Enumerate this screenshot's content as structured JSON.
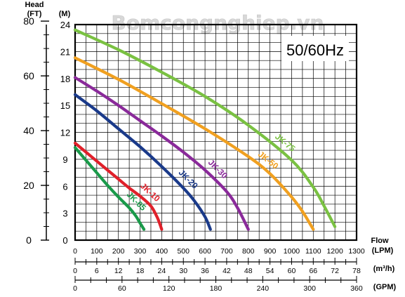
{
  "watermark": "Bomcongnghiep.vn",
  "frequency_label": "50/60Hz",
  "chart_data": {
    "type": "line",
    "title": "",
    "y_axis_title": "Head",
    "y_unit_ft": "(FT)",
    "y_unit_m": "(M)",
    "x_axis_title": "Flow",
    "x_unit_lpm": "(LPM)",
    "x_unit_m3h": "(m³/h)",
    "x_unit_gpm": "(GPM)",
    "ylim_m": [
      0,
      24
    ],
    "xlim_lpm": [
      0,
      1300
    ],
    "grid": true,
    "y_ticks_m": [
      0,
      3,
      6,
      9,
      12,
      15,
      18,
      21,
      24
    ],
    "y_ticks_ft": [
      0,
      20,
      40,
      60,
      80
    ],
    "x_ticks_lpm": [
      0,
      100,
      200,
      300,
      400,
      500,
      600,
      700,
      800,
      900,
      1000,
      1100,
      1200,
      1300
    ],
    "x_ticks_m3h": [
      0,
      6,
      12,
      18,
      24,
      30,
      36,
      42,
      48,
      54,
      60,
      66,
      72,
      78
    ],
    "x_ticks_gpm": [
      0,
      60,
      120,
      180,
      240,
      300,
      360
    ],
    "series": [
      {
        "name": "JK-05",
        "color": "#1a9a4a",
        "x": [
          0,
          50,
          100,
          150,
          200,
          250,
          280,
          300,
          318
        ],
        "y": [
          10.3,
          8.9,
          7.5,
          6.1,
          4.8,
          3.6,
          2.7,
          1.9,
          1.2
        ]
      },
      {
        "name": "JK-10",
        "color": "#e0202a",
        "x": [
          0,
          50,
          100,
          150,
          200,
          250,
          300,
          350,
          380,
          400
        ],
        "y": [
          10.8,
          9.8,
          8.8,
          7.8,
          6.8,
          5.8,
          4.9,
          3.8,
          2.5,
          1.2
        ]
      },
      {
        "name": "JK-20",
        "color": "#1a3a8a",
        "x": [
          0,
          100,
          200,
          300,
          400,
          500,
          550,
          600,
          625
        ],
        "y": [
          16.2,
          14.4,
          12.4,
          10.4,
          8.2,
          5.8,
          4.4,
          2.6,
          1.2
        ]
      },
      {
        "name": "JK-30",
        "color": "#8a2a9a",
        "x": [
          0,
          100,
          200,
          300,
          400,
          500,
          600,
          700,
          750,
          800
        ],
        "y": [
          18.1,
          16.6,
          15.0,
          13.3,
          11.6,
          9.8,
          7.8,
          5.4,
          3.6,
          1.2
        ]
      },
      {
        "name": "JK-50",
        "color": "#f0a020",
        "x": [
          0,
          200,
          400,
          600,
          800,
          900,
          1000,
          1050,
          1100
        ],
        "y": [
          20.3,
          17.9,
          15.2,
          12.4,
          9.3,
          7.4,
          4.8,
          3.2,
          1.2
        ]
      },
      {
        "name": "JK-75",
        "color": "#7ac142",
        "x": [
          0,
          200,
          400,
          600,
          800,
          1000,
          1100,
          1150,
          1200
        ],
        "y": [
          23.4,
          21.2,
          18.7,
          16.0,
          12.8,
          8.9,
          5.9,
          3.8,
          1.5
        ]
      }
    ]
  }
}
